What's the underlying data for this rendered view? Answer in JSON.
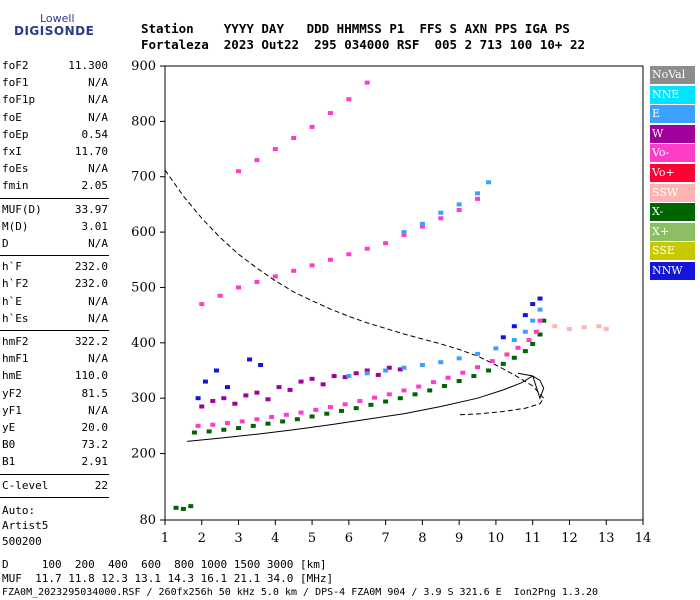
{
  "logo": {
    "top": "Lowell",
    "main": "DIGISONDE"
  },
  "header": {
    "line1": "Station    YYYY DAY   DDD HHMMSS P1  FFS S AXN PPS IGA PS",
    "line2": "Fortaleza  2023 Out22  295 034000 RSF  005 2 713 100 10+ 22"
  },
  "params": {
    "group1": [
      {
        "name": "foF2",
        "value": "11.300"
      },
      {
        "name": "foF1",
        "value": "N/A"
      },
      {
        "name": "foF1p",
        "value": "N/A"
      },
      {
        "name": "foE",
        "value": "N/A"
      },
      {
        "name": "foEp",
        "value": "0.54"
      },
      {
        "name": "fxI",
        "value": "11.70"
      },
      {
        "name": "foEs",
        "value": "N/A"
      },
      {
        "name": "fmin",
        "value": "2.05"
      }
    ],
    "group2": [
      {
        "name": "MUF(D)",
        "value": "33.97"
      },
      {
        "name": "M(D)",
        "value": "3.01"
      },
      {
        "name": "D",
        "value": "N/A"
      }
    ],
    "group3": [
      {
        "name": "h`F",
        "value": "232.0"
      },
      {
        "name": "h`F2",
        "value": "232.0"
      },
      {
        "name": "h`E",
        "value": "N/A"
      },
      {
        "name": "h`Es",
        "value": "N/A"
      }
    ],
    "group4": [
      {
        "name": "hmF2",
        "value": "322.2"
      },
      {
        "name": "hmF1",
        "value": "N/A"
      },
      {
        "name": "hmE",
        "value": "110.0"
      },
      {
        "name": "yF2",
        "value": "81.5"
      },
      {
        "name": "yF1",
        "value": "N/A"
      },
      {
        "name": "yE",
        "value": "20.0"
      },
      {
        "name": "B0",
        "value": "73.2"
      },
      {
        "name": "B1",
        "value": "2.91"
      }
    ],
    "clevel": {
      "name": "C-level",
      "value": "22"
    },
    "auto": [
      "Auto:",
      "Artist5",
      "500200"
    ]
  },
  "legend": [
    {
      "label": "NoVal",
      "color": "#8c8c8c"
    },
    {
      "label": "NNE",
      "color": "#00e4ff"
    },
    {
      "label": "E",
      "color": "#3ca0ff"
    },
    {
      "label": "W",
      "color": "#a0009b"
    },
    {
      "label": "Vo-",
      "color": "#ff3cc8"
    },
    {
      "label": "Vo+",
      "color": "#ff0032"
    },
    {
      "label": "SSW",
      "color": "#ffb4b4"
    },
    {
      "label": "X-",
      "color": "#006400"
    },
    {
      "label": "X+",
      "color": "#8cbe64"
    },
    {
      "label": "SSE",
      "color": "#c8c800"
    },
    {
      "label": "NNW",
      "color": "#1414dc"
    }
  ],
  "bottom": {
    "line1": "D     100  200  400  600  800 1000 1500 3000 [km]",
    "line2": "MUF  11.7 11.8 12.3 13.1 14.3 16.1 21.1 34.0 [MHz]",
    "line3": "FZA0M_2023295034000.RSF / 260fx256h 50 kHz 5.0 km / DPS-4 FZA0M 904 / 3.9 S 321.6 E  Ion2Png 1.3.20"
  },
  "chart_data": {
    "type": "scatter",
    "title": "",
    "xlabel": "",
    "ylabel": "",
    "xlim": [
      1,
      14
    ],
    "ylim": [
      80,
      900
    ],
    "xticks": [
      1,
      2,
      3,
      4,
      5,
      6,
      7,
      8,
      9,
      10,
      11,
      12,
      13,
      14
    ],
    "yticks": [
      80,
      200,
      300,
      400,
      500,
      600,
      700,
      800,
      900
    ],
    "grid": false,
    "series": [
      {
        "color": "#006400",
        "x": [
          1.8,
          2.2,
          2.6,
          3.0,
          3.4,
          3.8,
          4.2,
          4.6,
          5.0,
          5.4,
          5.8,
          6.2,
          6.6,
          7.0,
          7.4,
          7.8,
          8.2,
          8.6,
          9.0,
          9.4,
          9.8,
          10.2,
          10.5,
          10.8,
          11.0,
          11.2,
          11.3
        ],
        "y": [
          238,
          240,
          243,
          246,
          250,
          254,
          258,
          262,
          267,
          272,
          277,
          282,
          288,
          294,
          300,
          307,
          314,
          322,
          331,
          340,
          350,
          362,
          373,
          385,
          398,
          415,
          440
        ]
      },
      {
        "color": "#ff3cc8",
        "x": [
          1.9,
          2.3,
          2.7,
          3.1,
          3.5,
          3.9,
          4.3,
          4.7,
          5.1,
          5.5,
          5.9,
          6.3,
          6.7,
          7.1,
          7.5,
          7.9,
          8.3,
          8.7,
          9.1,
          9.5,
          9.9,
          10.3,
          10.6,
          10.9,
          11.1,
          11.2
        ],
        "y": [
          250,
          252,
          255,
          258,
          262,
          266,
          270,
          274,
          279,
          284,
          289,
          295,
          301,
          307,
          314,
          321,
          329,
          337,
          346,
          356,
          367,
          379,
          391,
          405,
          420,
          440
        ]
      },
      {
        "color": "#a0009b",
        "x": [
          2.0,
          2.3,
          2.6,
          2.9,
          3.2,
          3.5,
          3.8,
          4.1,
          4.4,
          4.7,
          5.0,
          5.3,
          5.6,
          5.9,
          6.2,
          6.5,
          6.8,
          7.1,
          7.4
        ],
        "y": [
          285,
          295,
          300,
          290,
          305,
          310,
          298,
          320,
          315,
          330,
          335,
          325,
          340,
          338,
          345,
          350,
          342,
          355,
          352
        ]
      },
      {
        "color": "#3ca0ff",
        "x": [
          6.0,
          6.5,
          7.0,
          7.5,
          8.0,
          8.5,
          9.0,
          9.5,
          10.0,
          10.5,
          10.8,
          11.0,
          11.2
        ],
        "y": [
          340,
          345,
          350,
          355,
          360,
          365,
          372,
          380,
          390,
          405,
          420,
          440,
          460
        ]
      },
      {
        "color": "#1414dc",
        "x": [
          1.9,
          2.1,
          2.4,
          2.7,
          3.3,
          3.6,
          10.2,
          10.5,
          10.8,
          11.0,
          11.2
        ],
        "y": [
          300,
          330,
          350,
          320,
          370,
          360,
          410,
          430,
          450,
          470,
          480
        ]
      },
      {
        "color": "#ff3cc8",
        "x": [
          2.0,
          2.5,
          3.0,
          3.5,
          4.0,
          4.5,
          5.0,
          5.5,
          6.0,
          6.5,
          7.0,
          7.5,
          8.0,
          8.5,
          9.0,
          9.5
        ],
        "y": [
          470,
          485,
          500,
          510,
          520,
          530,
          540,
          550,
          560,
          570,
          580,
          595,
          610,
          625,
          640,
          660
        ]
      },
      {
        "color": "#3ca0ff",
        "x": [
          7.5,
          8.0,
          8.5,
          9.0,
          9.5,
          9.8
        ],
        "y": [
          600,
          615,
          635,
          650,
          670,
          690
        ]
      },
      {
        "color": "#ff3cc8",
        "x": [
          3.0,
          3.5,
          4.0,
          4.5,
          5.0,
          5.5,
          6.0,
          6.5
        ],
        "y": [
          710,
          730,
          750,
          770,
          790,
          815,
          840,
          870
        ]
      },
      {
        "color": "#ffb4b4",
        "x": [
          11.6,
          12.0,
          12.4,
          12.8,
          13.0
        ],
        "y": [
          430,
          425,
          428,
          430,
          425
        ]
      },
      {
        "color": "#006400",
        "x": [
          1.3,
          1.5,
          1.7
        ],
        "y": [
          102,
          100,
          105
        ]
      }
    ],
    "curves": [
      {
        "style": "dashed",
        "x": [
          1.0,
          1.5,
          2.0,
          2.5,
          3.0,
          3.5,
          4.0,
          4.5,
          5.0,
          5.5,
          6.0,
          6.5,
          7.0,
          7.5,
          8.0,
          8.5,
          9.0,
          9.5,
          10.0,
          10.5,
          11.0,
          11.3,
          11.2,
          10.8,
          10.2,
          9.6,
          9.0
        ],
        "y": [
          712,
          665,
          625,
          590,
          560,
          535,
          512,
          492,
          476,
          461,
          448,
          436,
          426,
          416,
          407,
          398,
          388,
          376,
          360,
          342,
          322,
          300,
          290,
          282,
          276,
          272,
          270
        ]
      },
      {
        "style": "solid",
        "x": [
          1.6,
          2.5,
          3.5,
          4.5,
          5.5,
          6.5,
          7.5,
          8.5,
          9.5,
          10.2,
          10.7,
          11.0,
          11.2,
          11.3,
          11.2,
          11.0,
          10.6
        ],
        "y": [
          222,
          228,
          235,
          243,
          252,
          262,
          272,
          285,
          300,
          315,
          328,
          340,
          300,
          318,
          332,
          340,
          345
        ]
      }
    ]
  }
}
